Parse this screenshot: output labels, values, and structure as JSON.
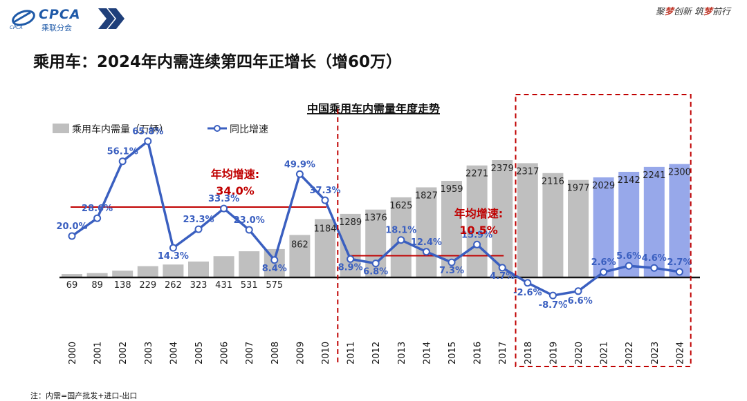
{
  "header": {
    "logo_text": "CPCA",
    "logo_subtitle": "乘联分会",
    "logo_small": "CPCA",
    "slogan_parts": [
      "聚",
      "梦",
      "创新 筑",
      "梦",
      "前行"
    ]
  },
  "page_title": "乘用车：2024年内需连续第四年正增长（增60万）",
  "footnote": "注：内需=国产批发+进口-出口",
  "chart_data": {
    "type": "bar+line",
    "title": "中国乘用车内需量年度走势",
    "categories": [
      "2000",
      "2001",
      "2002",
      "2003",
      "2004",
      "2005",
      "2006",
      "2007",
      "2008",
      "2009",
      "2010",
      "2011",
      "2012",
      "2013",
      "2014",
      "2015",
      "2016",
      "2017",
      "2018",
      "2019",
      "2020",
      "2021",
      "2022",
      "2023",
      "2024"
    ],
    "series": [
      {
        "name": "乘用车内需量（万辆）",
        "type": "bar",
        "values": [
          69,
          89,
          138,
          229,
          262,
          323,
          431,
          531,
          575,
          862,
          1184,
          1289,
          1376,
          1625,
          1827,
          1959,
          2271,
          2379,
          2317,
          2116,
          1977,
          2029,
          2142,
          2241,
          2300
        ],
        "value_labels": [
          "69",
          "89",
          "138",
          "229",
          "262",
          "323",
          "431",
          "531",
          "575",
          "862",
          "1184",
          "1289",
          "1376",
          "1625",
          "1827",
          "1959",
          "2271",
          "2379",
          "2317",
          "2116",
          "1977",
          "2029",
          "2142",
          "2241",
          "2300"
        ]
      },
      {
        "name": "同比增速",
        "type": "line",
        "values": [
          20.0,
          28.6,
          56.1,
          65.8,
          14.3,
          23.3,
          33.3,
          23.0,
          8.4,
          49.9,
          37.3,
          8.9,
          6.8,
          18.1,
          12.4,
          7.3,
          15.9,
          4.7,
          -2.6,
          -8.7,
          -6.6,
          2.6,
          5.6,
          4.6,
          2.7
        ],
        "value_labels": [
          "20.0%",
          "28.6%",
          "56.1%",
          "65.8%",
          "14.3%",
          "23.3%",
          "33.3%",
          "23.0%",
          "8.4%",
          "49.9%",
          "37.3%",
          "8.9%",
          "6.8%",
          "18.1%",
          "12.4%",
          "7.3%",
          "15.9%",
          "4.7%",
          "-2.6%",
          "-8.7%",
          "-6.6%",
          "2.6%",
          "5.6%",
          "4.6%",
          "2.7%"
        ]
      }
    ],
    "bar_colors": {
      "history": "#bfbfbf",
      "recent": "#97a8ea"
    },
    "line_color": "#3a5fc0",
    "annotations": [
      {
        "label": "年均增速:",
        "value": "34.0%",
        "period": [
          "2000",
          "2010"
        ],
        "color": "#c00000"
      },
      {
        "label": "年均增速:",
        "value": "10.5%",
        "period": [
          "2011",
          "2017"
        ],
        "color": "#c00000"
      }
    ],
    "avg_lines": [
      {
        "from": "2000",
        "to": "2010",
        "value": 34.0
      },
      {
        "from": "2011",
        "to": "2017",
        "value": 10.5
      }
    ],
    "highlight_period": [
      "2018",
      "2024"
    ],
    "legend_position": "top-left"
  }
}
